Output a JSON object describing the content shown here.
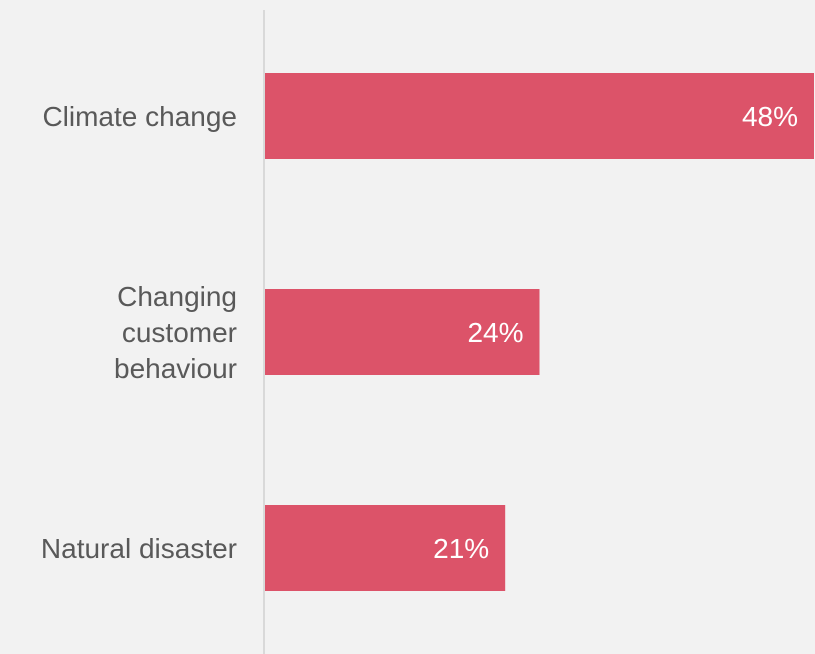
{
  "chart_data": {
    "type": "bar",
    "orientation": "horizontal",
    "categories": [
      [
        "Climate change"
      ],
      [
        "Changing",
        "customer",
        "behaviour"
      ],
      [
        "Natural disaster"
      ]
    ],
    "values": [
      48,
      24,
      21
    ],
    "value_labels": [
      "48%",
      "24%",
      "21%"
    ],
    "xlim": [
      0,
      48
    ],
    "grid": false,
    "legend": "none",
    "title": "",
    "xlabel": "",
    "ylabel": ""
  },
  "colors": {
    "bar": "#dc5369",
    "background": "#f2f2f2",
    "axis": "#d9d9d9",
    "category_text": "#595959",
    "value_text": "#ffffff"
  }
}
